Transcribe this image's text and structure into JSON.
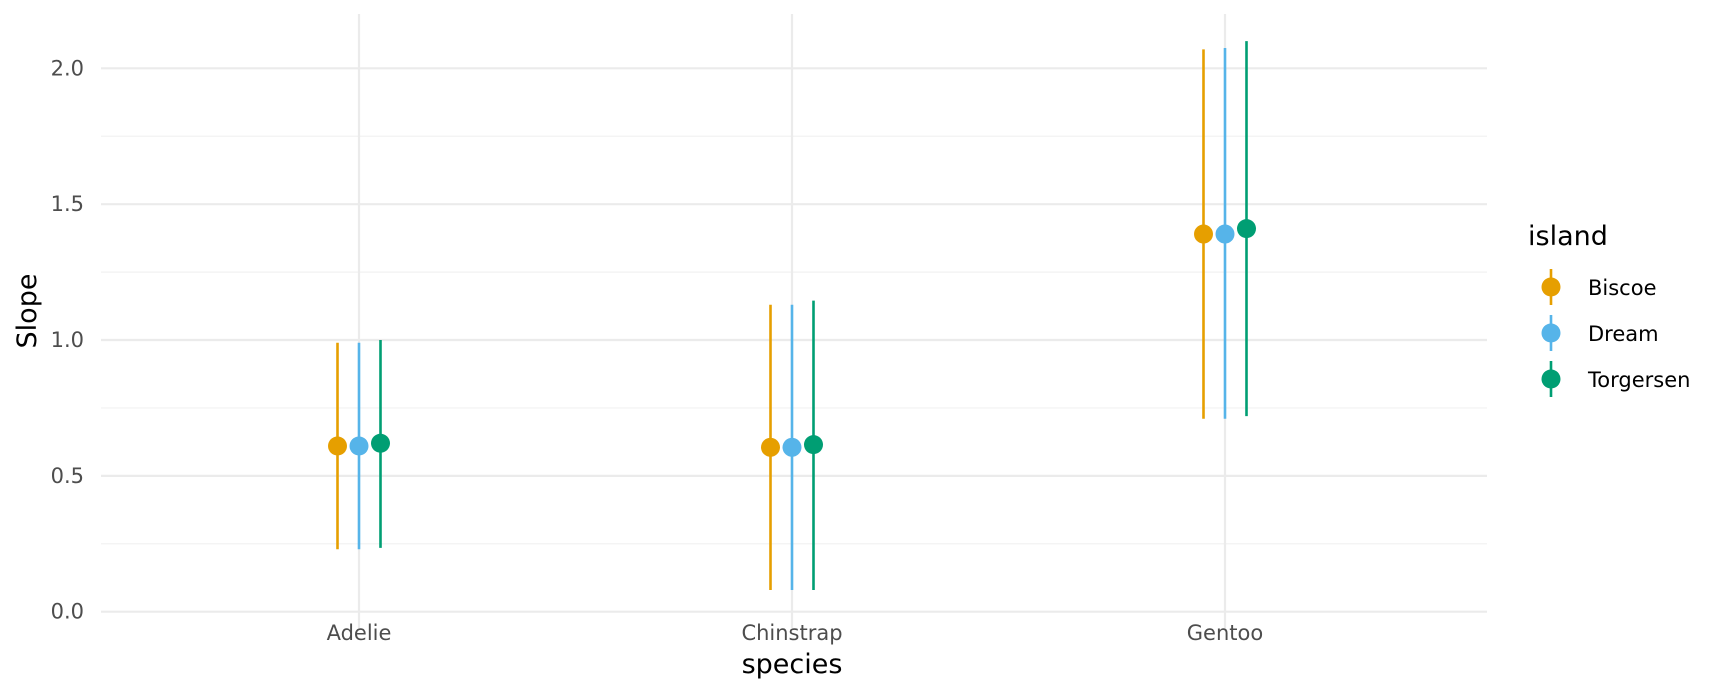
{
  "chart_data": {
    "type": "pointrange",
    "xlabel": "species",
    "ylabel": "Slope",
    "categories": [
      "Adelie",
      "Chinstrap",
      "Gentoo"
    ],
    "ylim": [
      -0.06,
      2.2
    ],
    "y_ticks": [
      0.0,
      0.5,
      1.0,
      1.5,
      2.0
    ],
    "y_tick_labels": [
      "0.0",
      "0.5",
      "1.0",
      "1.5",
      "2.0"
    ],
    "grid": true,
    "legend": {
      "title": "island",
      "position": "right"
    },
    "series": [
      {
        "name": "Biscoe",
        "color": "#E69F00",
        "estimate": [
          0.61,
          0.605,
          1.39
        ],
        "lower": [
          0.23,
          0.08,
          0.71
        ],
        "upper": [
          0.99,
          1.13,
          2.07
        ]
      },
      {
        "name": "Dream",
        "color": "#56B4E9",
        "estimate": [
          0.61,
          0.605,
          1.39
        ],
        "lower": [
          0.23,
          0.08,
          0.71
        ],
        "upper": [
          0.99,
          1.13,
          2.075
        ]
      },
      {
        "name": "Torgersen",
        "color": "#009E73",
        "estimate": [
          0.62,
          0.615,
          1.41
        ],
        "lower": [
          0.235,
          0.08,
          0.72
        ],
        "upper": [
          1.0,
          1.145,
          2.1
        ]
      }
    ]
  }
}
